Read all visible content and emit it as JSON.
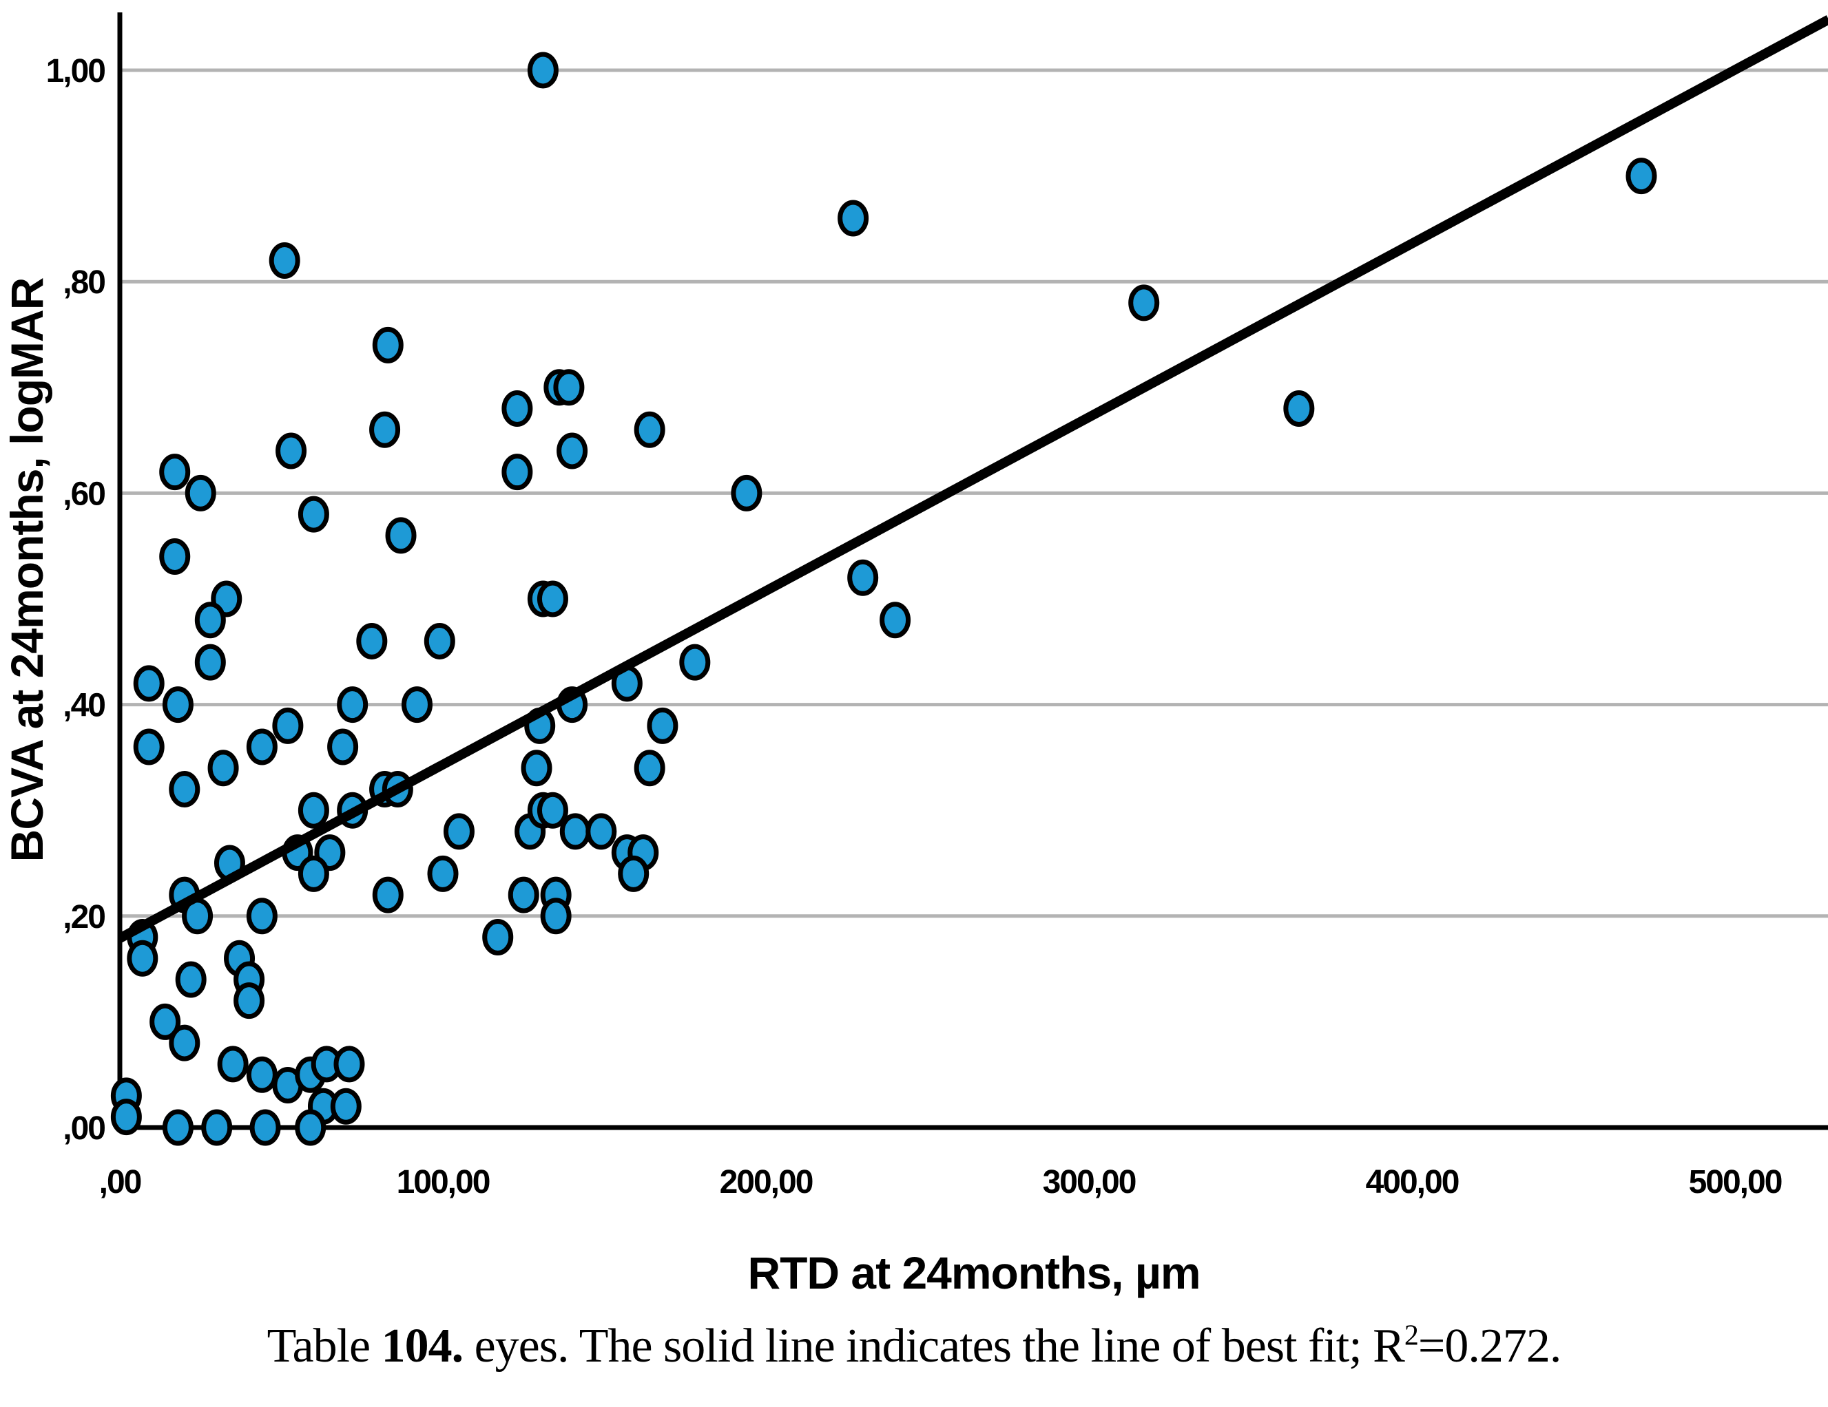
{
  "chart_data": {
    "type": "scatter",
    "xlabel": "RTD at 24months, µm",
    "ylabel": "BCVA at 24months, logMAR",
    "x_ticks": {
      "values": [
        0,
        100,
        200,
        300,
        400,
        500
      ],
      "labels": [
        ",00",
        "100,00",
        "200,00",
        "300,00",
        "400,00",
        "500,00"
      ]
    },
    "y_ticks": {
      "values": [
        0,
        0.2,
        0.4,
        0.6,
        0.8,
        1.0
      ],
      "labels": [
        ",00",
        ",20",
        ",40",
        ",60",
        ",80",
        "1,00"
      ]
    },
    "xlim": [
      0,
      529
    ],
    "ylim": [
      0,
      1.055
    ],
    "grid": "horizontal-only",
    "legend": "none",
    "marker": {
      "shape": "ellipse",
      "fill": "#1E9AD6",
      "stroke": "#000000"
    },
    "grid_color": "#B3B3B3",
    "axis_color": "#000000",
    "points": [
      [
        131,
        1.0
      ],
      [
        227,
        0.86
      ],
      [
        471,
        0.9
      ],
      [
        317,
        0.78
      ],
      [
        365,
        0.68
      ],
      [
        51,
        0.82
      ],
      [
        83,
        0.74
      ],
      [
        17,
        0.62
      ],
      [
        25,
        0.6
      ],
      [
        53,
        0.64
      ],
      [
        82,
        0.66
      ],
      [
        123,
        0.68
      ],
      [
        123,
        0.62
      ],
      [
        60,
        0.58
      ],
      [
        87,
        0.56
      ],
      [
        17,
        0.54
      ],
      [
        136,
        0.7
      ],
      [
        139,
        0.7
      ],
      [
        140,
        0.64
      ],
      [
        164,
        0.66
      ],
      [
        194,
        0.6
      ],
      [
        230,
        0.52
      ],
      [
        240,
        0.48
      ],
      [
        33,
        0.5
      ],
      [
        28,
        0.48
      ],
      [
        28,
        0.44
      ],
      [
        78,
        0.46
      ],
      [
        9,
        0.42
      ],
      [
        18,
        0.4
      ],
      [
        72,
        0.4
      ],
      [
        92,
        0.4
      ],
      [
        99,
        0.46
      ],
      [
        131,
        0.5
      ],
      [
        134,
        0.5
      ],
      [
        140,
        0.4
      ],
      [
        157,
        0.42
      ],
      [
        178,
        0.44
      ],
      [
        168,
        0.38
      ],
      [
        130,
        0.38
      ],
      [
        9,
        0.36
      ],
      [
        44,
        0.36
      ],
      [
        69,
        0.36
      ],
      [
        52,
        0.38
      ],
      [
        32,
        0.34
      ],
      [
        129,
        0.34
      ],
      [
        164,
        0.34
      ],
      [
        20,
        0.32
      ],
      [
        60,
        0.3
      ],
      [
        72,
        0.3
      ],
      [
        82,
        0.32
      ],
      [
        86,
        0.32
      ],
      [
        105,
        0.28
      ],
      [
        100,
        0.24
      ],
      [
        127,
        0.28
      ],
      [
        141,
        0.28
      ],
      [
        149,
        0.28
      ],
      [
        131,
        0.3
      ],
      [
        134,
        0.3
      ],
      [
        157,
        0.26
      ],
      [
        162,
        0.26
      ],
      [
        159,
        0.24
      ],
      [
        125,
        0.22
      ],
      [
        135,
        0.22
      ],
      [
        135,
        0.2
      ],
      [
        117,
        0.18
      ],
      [
        83,
        0.22
      ],
      [
        55,
        0.26
      ],
      [
        65,
        0.26
      ],
      [
        60,
        0.24
      ],
      [
        34,
        0.25
      ],
      [
        20,
        0.22
      ],
      [
        24,
        0.2
      ],
      [
        44,
        0.2
      ],
      [
        7,
        0.18
      ],
      [
        7,
        0.16
      ],
      [
        22,
        0.14
      ],
      [
        37,
        0.16
      ],
      [
        40,
        0.14
      ],
      [
        40,
        0.12
      ],
      [
        14,
        0.1
      ],
      [
        20,
        0.08
      ],
      [
        35,
        0.06
      ],
      [
        44,
        0.05
      ],
      [
        52,
        0.04
      ],
      [
        59,
        0.05
      ],
      [
        64,
        0.06
      ],
      [
        71,
        0.06
      ],
      [
        63,
        0.02
      ],
      [
        70,
        0.02
      ],
      [
        2,
        0.03
      ],
      [
        2,
        0.01
      ],
      [
        18,
        0.0
      ],
      [
        30,
        0.0
      ],
      [
        45,
        0.0
      ],
      [
        59,
        0.0
      ]
    ],
    "trendline": {
      "x1": 0,
      "y1": 0.179,
      "x2": 529,
      "y2": 1.048,
      "color": "#000000",
      "meaning": "line of best fit"
    },
    "r_squared": "0.272"
  },
  "caption": {
    "part1": "Table ",
    "bold": "104.",
    "part2": " eyes. The solid line indicates the line of best fit; R",
    "sup": "2",
    "part3": "=0.272."
  }
}
